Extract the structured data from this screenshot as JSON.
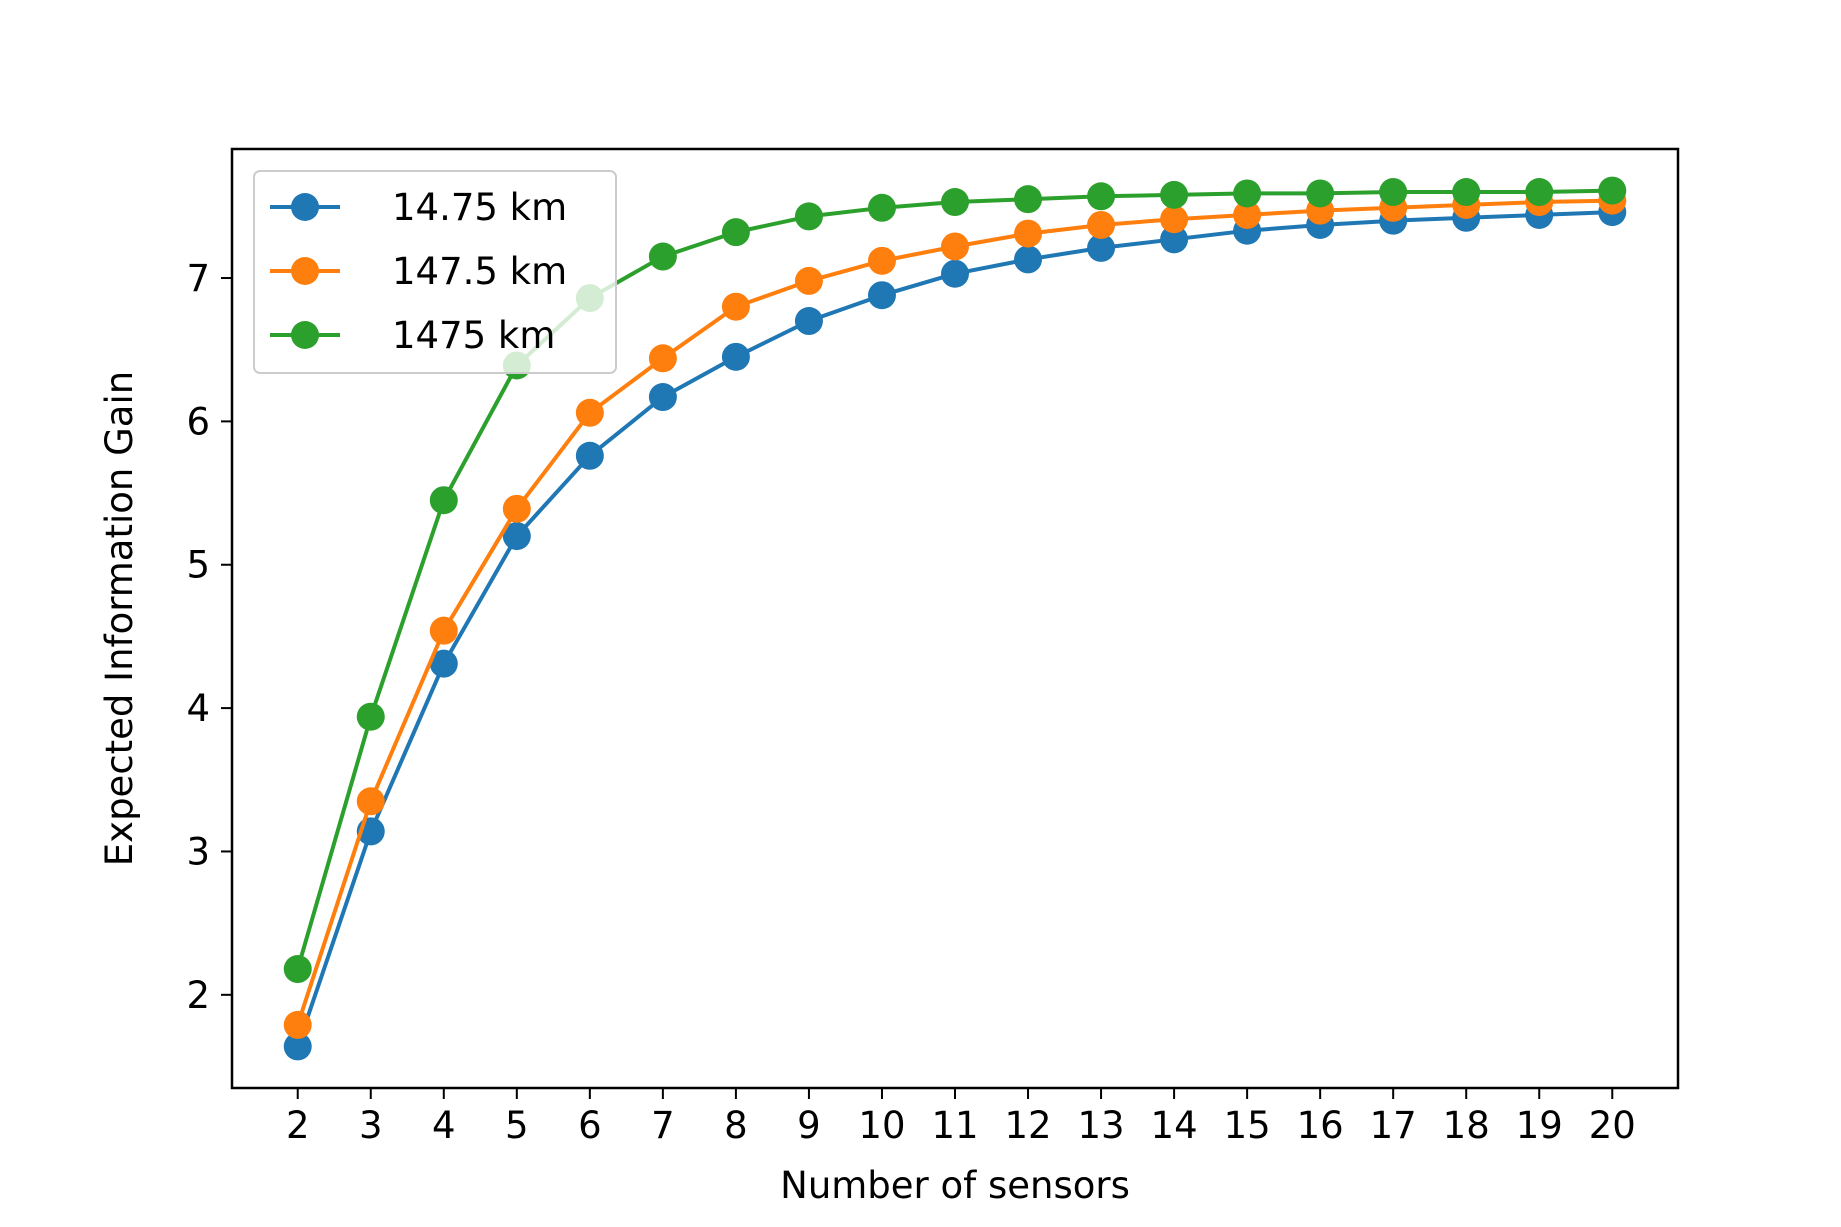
{
  "chart_data": {
    "type": "line",
    "title": "",
    "xlabel": "Number of sensors",
    "ylabel": "Expected Information Gain",
    "x": [
      2,
      3,
      4,
      5,
      6,
      7,
      8,
      9,
      10,
      11,
      12,
      13,
      14,
      15,
      16,
      17,
      18,
      19,
      20
    ],
    "x_ticks": [
      "2",
      "3",
      "4",
      "5",
      "6",
      "7",
      "8",
      "9",
      "10",
      "11",
      "12",
      "13",
      "14",
      "15",
      "16",
      "17",
      "18",
      "19",
      "20"
    ],
    "y_ticks": [
      "2",
      "3",
      "4",
      "5",
      "6",
      "7"
    ],
    "xlim": [
      1.1,
      20.9
    ],
    "ylim": [
      1.35,
      7.9
    ],
    "grid": false,
    "legend_position": "upper-left",
    "series": [
      {
        "name": "14.75 km",
        "color": "#1f77b4",
        "values": [
          1.64,
          3.14,
          4.31,
          5.2,
          5.76,
          6.17,
          6.45,
          6.7,
          6.88,
          7.03,
          7.13,
          7.21,
          7.27,
          7.33,
          7.37,
          7.4,
          7.42,
          7.44,
          7.46
        ]
      },
      {
        "name": "147.5 km",
        "color": "#ff7f0e",
        "values": [
          1.79,
          3.35,
          4.54,
          5.39,
          6.06,
          6.44,
          6.8,
          6.98,
          7.12,
          7.22,
          7.31,
          7.37,
          7.41,
          7.44,
          7.47,
          7.49,
          7.51,
          7.53,
          7.54
        ]
      },
      {
        "name": "1475 km",
        "color": "#2ca02c",
        "values": [
          2.18,
          3.94,
          5.45,
          6.39,
          6.86,
          7.15,
          7.32,
          7.43,
          7.49,
          7.53,
          7.55,
          7.57,
          7.58,
          7.59,
          7.59,
          7.6,
          7.6,
          7.6,
          7.61
        ]
      }
    ]
  }
}
